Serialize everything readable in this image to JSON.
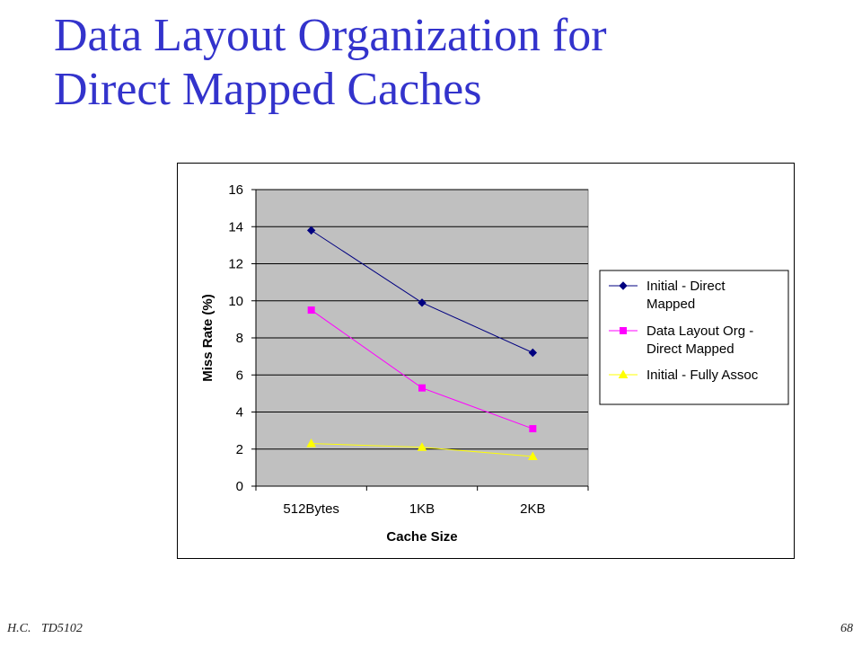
{
  "slide": {
    "title_line1": "Data Layout Organization for",
    "title_line2": "Direct Mapped Caches",
    "footer_author": "H.C.",
    "footer_course": "TD5102",
    "page_number": "68"
  },
  "chart_data": {
    "type": "line",
    "categories": [
      "512Bytes",
      "1KB",
      "2KB"
    ],
    "series": [
      {
        "name": "Initial - Direct Mapped",
        "label_lines": [
          "Initial - Direct",
          "Mapped"
        ],
        "values": [
          13.8,
          9.9,
          7.2
        ],
        "color": "#000080",
        "marker": "diamond"
      },
      {
        "name": "Data Layout Org - Direct Mapped",
        "label_lines": [
          "Data Layout Org -",
          "Direct Mapped"
        ],
        "values": [
          9.5,
          5.3,
          3.1
        ],
        "color": "#ff00ff",
        "marker": "square"
      },
      {
        "name": "Initial - Fully Assoc",
        "label_lines": [
          "Initial - Fully Assoc"
        ],
        "values": [
          2.3,
          2.1,
          1.6
        ],
        "color": "#ffff00",
        "marker": "triangle"
      }
    ],
    "xlabel": "Cache Size",
    "ylabel": "Miss Rate (%)",
    "ylim": [
      0,
      16
    ],
    "yticks": [
      0,
      2,
      4,
      6,
      8,
      10,
      12,
      14,
      16
    ],
    "grid": true,
    "legend_position": "right",
    "plot_background": "#c0c0c0"
  }
}
